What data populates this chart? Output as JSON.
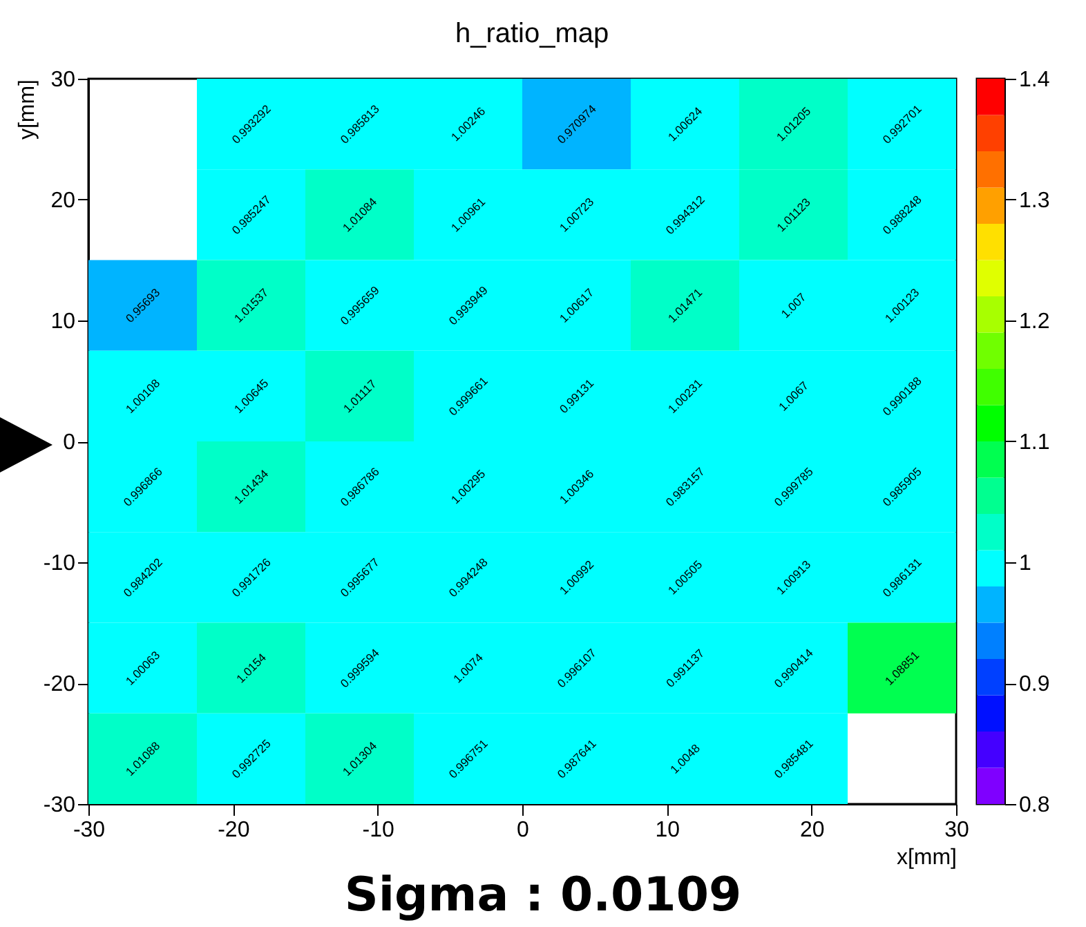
{
  "chart_data": {
    "type": "heatmap",
    "title": "h_ratio_map",
    "xlabel": "x[mm]",
    "ylabel": "y[mm]",
    "annotations": [
      "Sigma : 0.0109"
    ],
    "xlim": [
      -30,
      30
    ],
    "xticks": [
      -30,
      -20,
      -10,
      0,
      10,
      20,
      30
    ],
    "ylim": [
      -30,
      30
    ],
    "yticks": [
      -30,
      -20,
      -10,
      0,
      10,
      20,
      30
    ],
    "cells": [
      [
        null,
        0.993292,
        0.985813,
        1.00246,
        0.970974,
        1.00624,
        1.01205,
        0.992701
      ],
      [
        null,
        0.985247,
        1.01084,
        1.00961,
        1.00723,
        0.994312,
        1.01123,
        0.988248
      ],
      [
        0.95693,
        1.01537,
        0.995659,
        0.993949,
        1.00617,
        1.01471,
        1.007,
        1.00123
      ],
      [
        1.00108,
        1.00645,
        1.01117,
        0.999661,
        0.99131,
        1.00231,
        1.0067,
        0.990188
      ],
      [
        0.996866,
        1.01434,
        0.986786,
        1.00295,
        1.00346,
        0.983157,
        0.999785,
        0.985905
      ],
      [
        0.984202,
        0.991726,
        0.995677,
        0.994248,
        1.00992,
        1.00505,
        1.00913,
        0.986131
      ],
      [
        1.00063,
        1.0154,
        0.999594,
        1.0074,
        0.996107,
        0.991137,
        0.990414,
        1.08851
      ],
      [
        1.01088,
        0.992725,
        1.01304,
        0.996751,
        0.987641,
        1.0048,
        0.985481,
        null
      ]
    ],
    "data_labels": true,
    "clim": [
      0.8,
      1.4
    ],
    "cticks": [
      0.8,
      0.9,
      1,
      1.1,
      1.2,
      1.3,
      1.4
    ],
    "colors": [
      "#7f00ff",
      "#4400ff",
      "#0010ff",
      "#0040ff",
      "#0080ff",
      "#00b4ff",
      "#00ffff",
      "#00ffc8",
      "#00ff90",
      "#00ff50",
      "#00ff00",
      "#40ff00",
      "#70ff00",
      "#a8ff00",
      "#e0ff00",
      "#ffe000",
      "#ffa000",
      "#ff7000",
      "#ff4000",
      "#ff0000"
    ],
    "grid": false
  }
}
